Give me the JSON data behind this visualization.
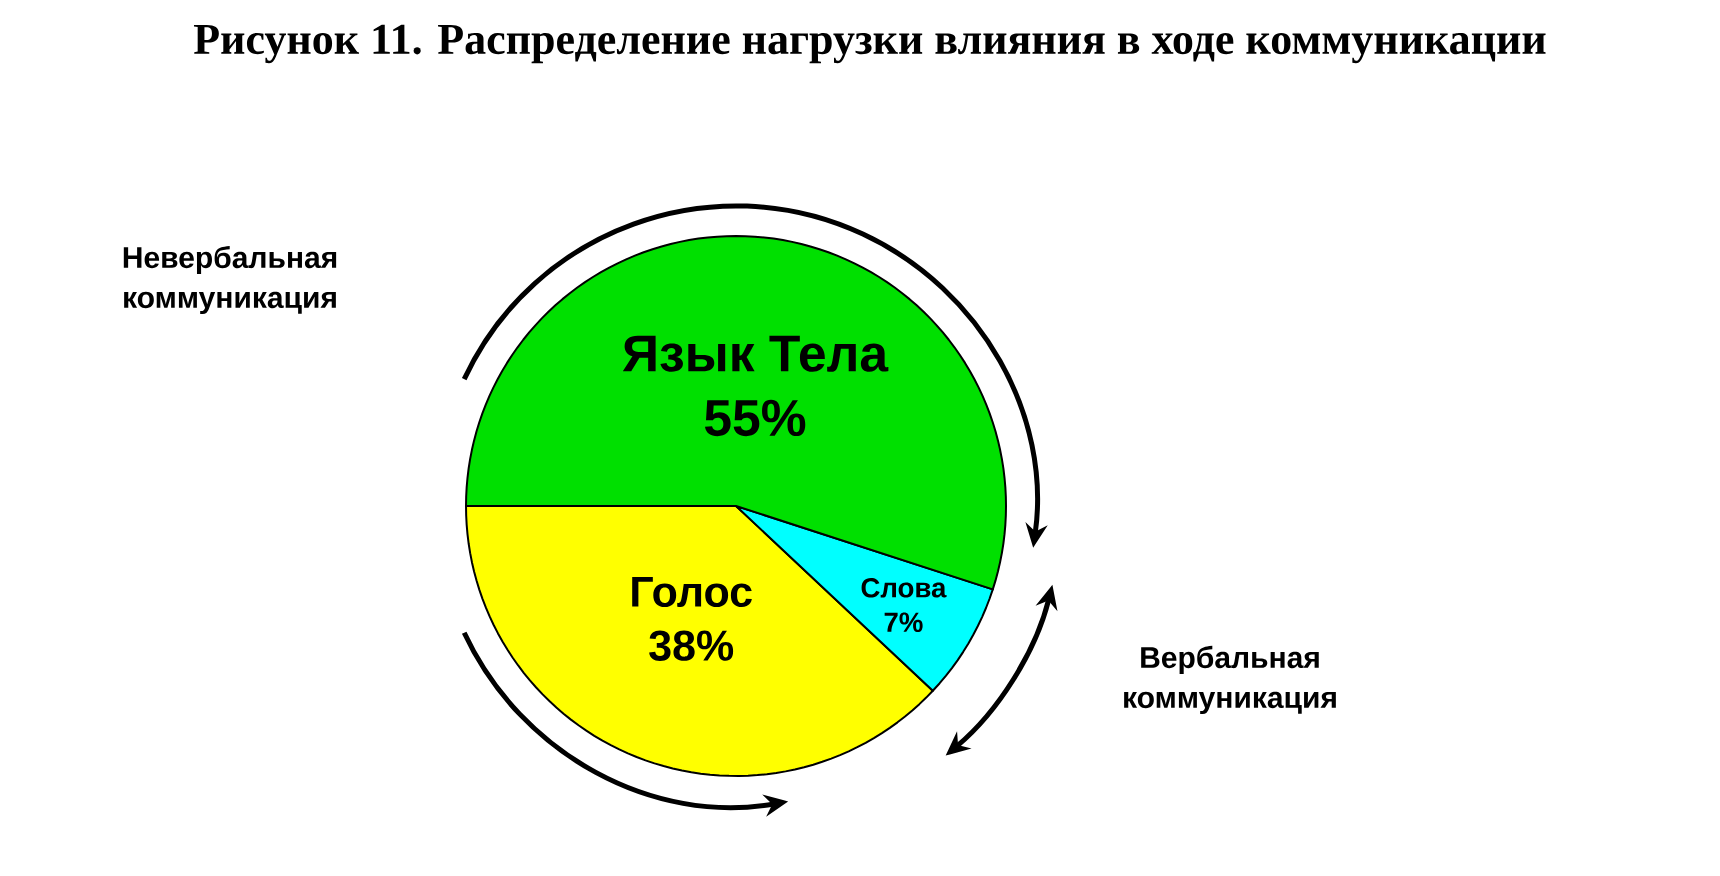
{
  "chart_data": {
    "type": "pie",
    "title": "Рисунок 11. Распределение нагрузки влияния в ходе коммуникации",
    "categories": [
      "Голос",
      "Слова",
      "Язык Тела"
    ],
    "values": [
      38,
      7,
      55
    ],
    "value_labels": [
      "38%",
      "7%",
      "55%"
    ],
    "colors": [
      "#ffff00",
      "#00ffff",
      "#00e000"
    ],
    "annotations": [
      "Невербальная коммуникация",
      "Вербальная коммуникация"
    ]
  }
}
